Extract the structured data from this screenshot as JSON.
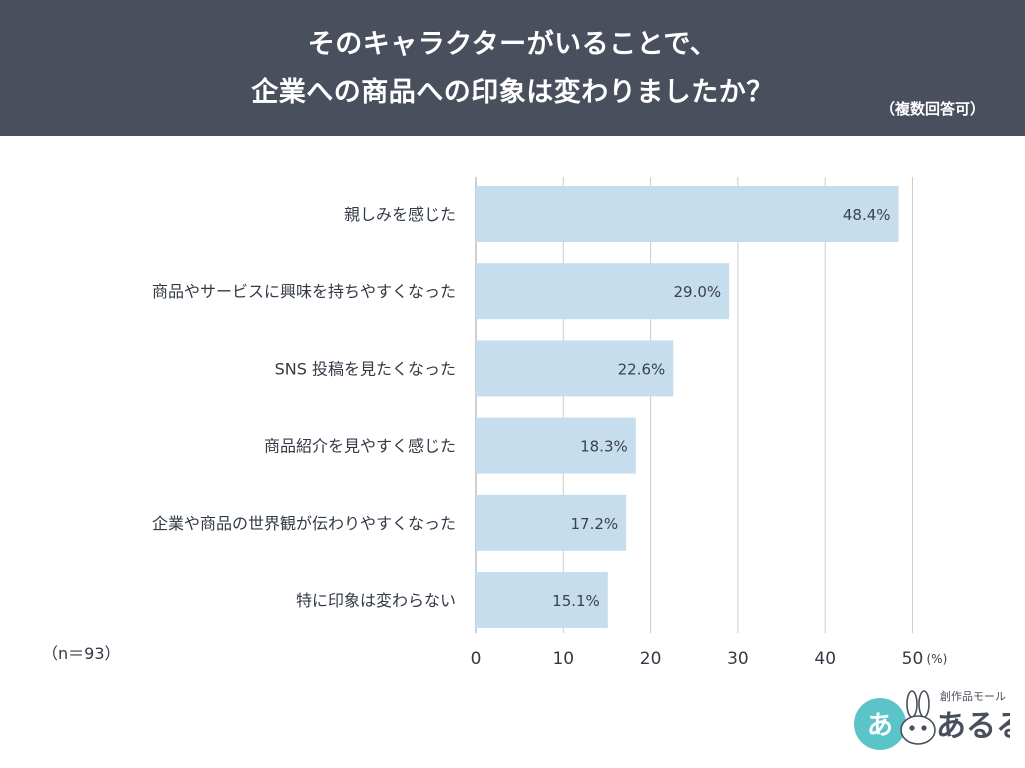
{
  "header": {
    "title_line1": "そのキャラクターがいることで、",
    "title_line2": "企業への商品への印象は変わりましたか？",
    "note": "（複数回答可）"
  },
  "sample_note": "（n＝93）",
  "logo": {
    "small_text": "創作品モール",
    "big_text": "あるる",
    "mark_text": "あ"
  },
  "colors": {
    "header_bg": "#4a4f5e",
    "bar": "#c5dded",
    "grid": "#cccccc"
  },
  "chart_data": {
    "type": "bar",
    "orientation": "horizontal",
    "categories": [
      "親しみを感じた",
      "商品やサービスに興味を持ちやすくなった",
      "SNS 投稿を見たくなった",
      "商品紹介を見やすく感じた",
      "企業や商品の世界観が伝わりやすくなった",
      "特に印象は変わらない"
    ],
    "values": [
      48.4,
      29.0,
      22.6,
      18.3,
      17.2,
      15.1
    ],
    "value_labels": [
      "48.4%",
      "29.0%",
      "22.6%",
      "18.3%",
      "17.2%",
      "15.1%"
    ],
    "xticks": [
      "0",
      "10",
      "20",
      "30",
      "40",
      "50"
    ],
    "xunit": "(%)",
    "xlim": [
      0,
      50
    ],
    "grid": true
  }
}
